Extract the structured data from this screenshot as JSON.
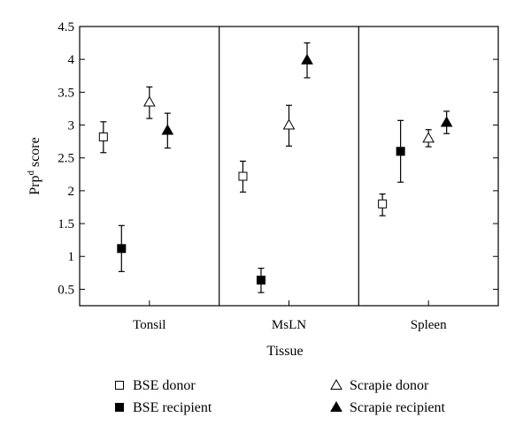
{
  "chart_data": {
    "type": "scatter",
    "title": "",
    "xlabel": "Tissue",
    "ylabel": {
      "base": "Prp",
      "sup": "d",
      "rest": " score"
    },
    "categories": [
      "Tonsil",
      "MsLN",
      "Spleen"
    ],
    "ylim": [
      0.25,
      4.5
    ],
    "yticks": [
      "0.5",
      "1",
      "1.5",
      "2",
      "2.5",
      "3",
      "3.5",
      "4",
      "4.5"
    ],
    "grid": false,
    "legend_position": "bottom",
    "series": [
      {
        "name": "BSE donor",
        "marker": "square-open",
        "values": [
          2.82,
          2.22,
          1.8
        ],
        "err_low": [
          2.58,
          1.98,
          1.62
        ],
        "err_high": [
          3.05,
          2.45,
          1.95
        ]
      },
      {
        "name": "BSE recipient",
        "marker": "square-filled",
        "values": [
          1.12,
          0.64,
          2.6
        ],
        "err_low": [
          0.77,
          0.45,
          2.13
        ],
        "err_high": [
          1.47,
          0.82,
          3.07
        ]
      },
      {
        "name": "Scrapie donor",
        "marker": "triangle-open",
        "values": [
          3.35,
          3.0,
          2.8
        ],
        "err_low": [
          3.1,
          2.68,
          2.67
        ],
        "err_high": [
          3.58,
          3.3,
          2.93
        ]
      },
      {
        "name": "Scrapie recipient",
        "marker": "triangle-filled",
        "values": [
          2.92,
          3.99,
          3.04
        ],
        "err_low": [
          2.65,
          3.72,
          2.87
        ],
        "err_high": [
          3.18,
          4.25,
          3.21
        ]
      }
    ]
  }
}
